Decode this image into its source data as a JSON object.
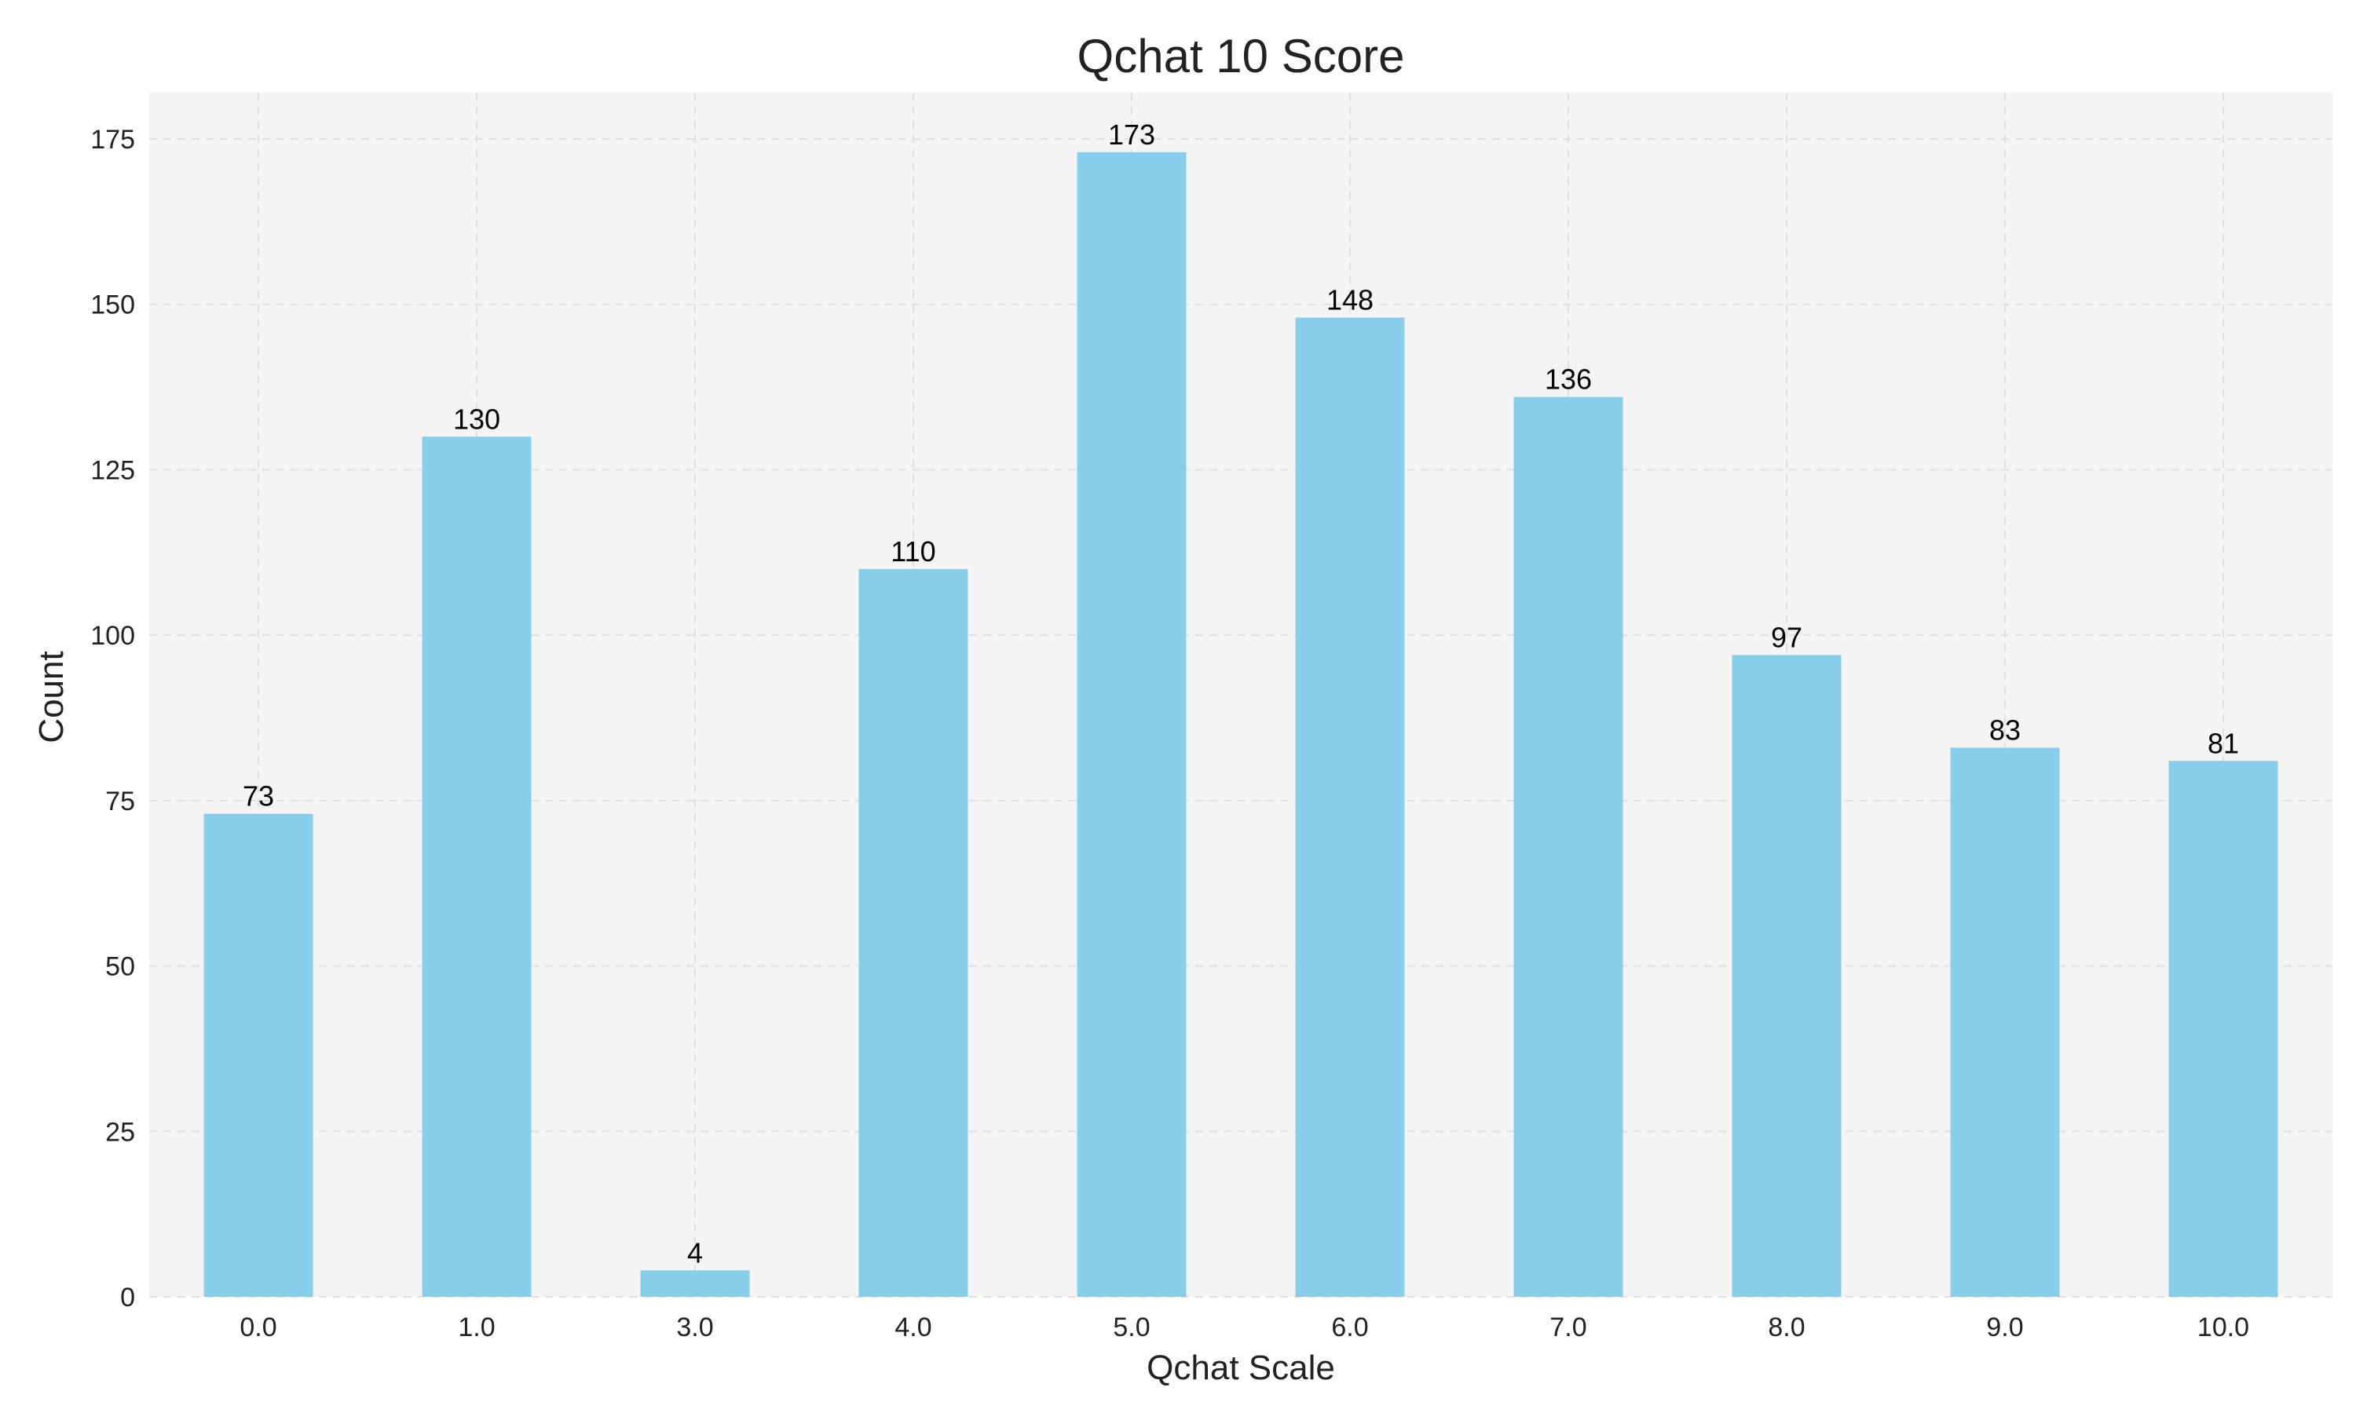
{
  "chart_data": {
    "type": "bar",
    "title": "Qchat 10 Score",
    "xlabel": "Qchat Scale",
    "ylabel": "Count",
    "categories": [
      "0.0",
      "1.0",
      "3.0",
      "4.0",
      "5.0",
      "6.0",
      "7.0",
      "8.0",
      "9.0",
      "10.0"
    ],
    "values": [
      73,
      130,
      4,
      110,
      173,
      148,
      136,
      97,
      83,
      81
    ],
    "data_labels": [
      "73",
      "130",
      "4",
      "110",
      "173",
      "148",
      "136",
      "97",
      "83",
      "81"
    ],
    "yticks": [
      0,
      25,
      50,
      75,
      100,
      125,
      150,
      175
    ],
    "ylim": [
      0,
      182
    ],
    "grid": true,
    "legend": "none",
    "bar_color": "#87CEEB",
    "plot_background": "#F4F4F4",
    "grid_color": "#E0E0E0"
  }
}
